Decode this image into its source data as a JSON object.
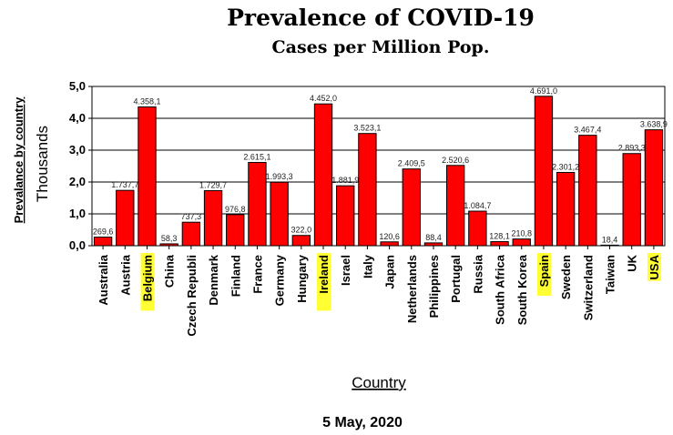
{
  "chart_data": {
    "type": "bar",
    "title": "Prevalence of COVID-19",
    "subtitle": "Cases per Million Pop.",
    "ylabel_line1": "Prevalance by country",
    "ylabel_line2": "Thousands",
    "xlabel": "Country",
    "date": "5 May, 2020",
    "ylim": [
      0,
      5
    ],
    "yticks": [
      "0,0",
      "1,0",
      "2,0",
      "3,0",
      "4,0",
      "5,0"
    ],
    "grid": true,
    "bar_color": "#ff0000",
    "highlight_color": "#ffff33",
    "categories": [
      "Australia",
      "Austria",
      "Belgium",
      "China",
      "Czech Republi",
      "Denmark",
      "Finland",
      "France",
      "Germany",
      "Hungary",
      "Ireland",
      "Israel",
      "Italy",
      "Japan",
      "Netherlands",
      "Philippines",
      "Portugal",
      "Russia",
      "South Africa",
      "South Korea",
      "Spain",
      "Sweden",
      "Switzerland",
      "Taiwan",
      "UK",
      "USA"
    ],
    "values": [
      0.2696,
      1.7377,
      4.3581,
      0.0583,
      0.7373,
      1.7297,
      0.9768,
      2.6151,
      1.9933,
      0.322,
      4.452,
      1.8819,
      3.5231,
      0.1206,
      2.4095,
      0.0884,
      2.5206,
      1.0847,
      0.1281,
      0.2108,
      4.691,
      2.3012,
      3.4674,
      0.0184,
      2.8933,
      3.6389
    ],
    "value_labels": [
      "269,6",
      "1.737,7",
      "4.358,1",
      "58,3",
      "737,3",
      "1.729,7",
      "976,8",
      "2.615,1",
      "1.993,3",
      "322,0",
      "4.452,0",
      "1.881,9",
      "3.523,1",
      "120,6",
      "2.409,5",
      "88,4",
      "2.520,6",
      "1.084,7",
      "128,1",
      "210,8",
      "4.691,0",
      "2.301,2",
      "3.467,4",
      "18,4",
      "2.893,3",
      "3.638,9"
    ],
    "highlighted": [
      "Belgium",
      "Ireland",
      "Spain",
      "USA"
    ]
  }
}
